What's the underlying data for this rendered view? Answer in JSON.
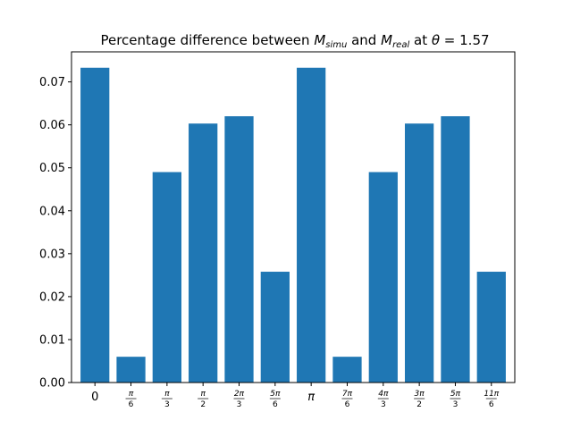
{
  "chart_data": {
    "type": "bar",
    "title": {
      "prefix": "Percentage difference between ",
      "m1": "M",
      "m1_sub": "simu",
      "middle": " and ",
      "m2": "M",
      "m2_sub": "real",
      "suffix_pre": " at ",
      "theta": "θ",
      "suffix_post": " = 1.57"
    },
    "xlabel": "",
    "ylabel": "",
    "categories": [
      {
        "label": "0"
      },
      {
        "num": "π",
        "den": "6"
      },
      {
        "num": "π",
        "den": "3"
      },
      {
        "num": "π",
        "den": "2"
      },
      {
        "num": "2π",
        "den": "3"
      },
      {
        "num": "5π",
        "den": "6"
      },
      {
        "label": "π"
      },
      {
        "num": "7π",
        "den": "6"
      },
      {
        "num": "4π",
        "den": "3"
      },
      {
        "num": "3π",
        "den": "2"
      },
      {
        "num": "5π",
        "den": "3"
      },
      {
        "num": "11π",
        "den": "6"
      }
    ],
    "values": [
      0.0733,
      0.006,
      0.049,
      0.0603,
      0.062,
      0.0258,
      0.0733,
      0.006,
      0.049,
      0.0603,
      0.062,
      0.0258
    ],
    "ylim": [
      0,
      0.077
    ],
    "yticks": [
      "0.00",
      "0.01",
      "0.02",
      "0.03",
      "0.04",
      "0.05",
      "0.06",
      "0.07"
    ],
    "grid": false,
    "bar_color": "#1f77b4"
  }
}
